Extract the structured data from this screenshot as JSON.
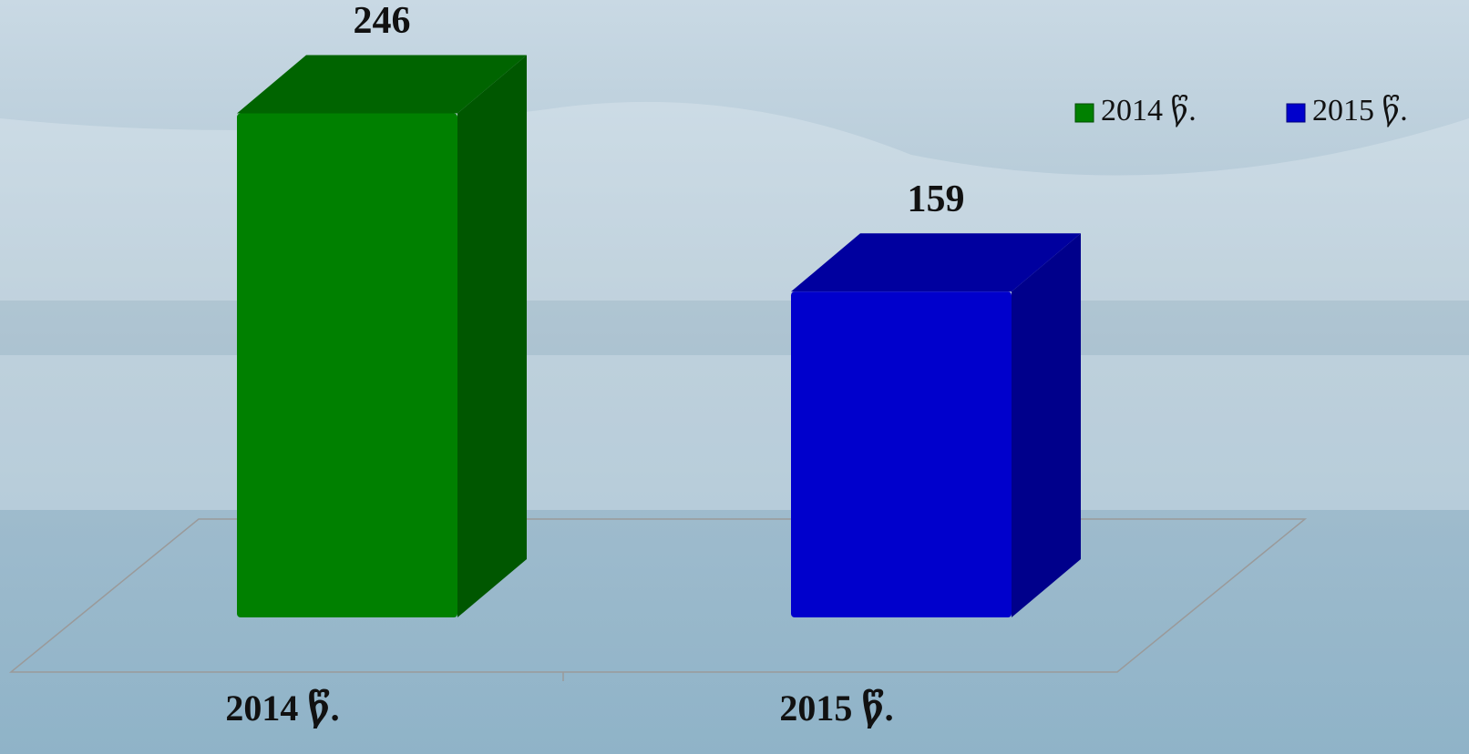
{
  "chart_data": {
    "type": "bar3d",
    "categories": [
      "2014 წ.",
      "2015 წ."
    ],
    "series": [
      {
        "name": "2014 წ.",
        "color": "#008000",
        "values": [
          246,
          null
        ]
      },
      {
        "name": "2015 წ.",
        "color": "#0000cc",
        "values": [
          null,
          159
        ]
      }
    ]
  }
}
